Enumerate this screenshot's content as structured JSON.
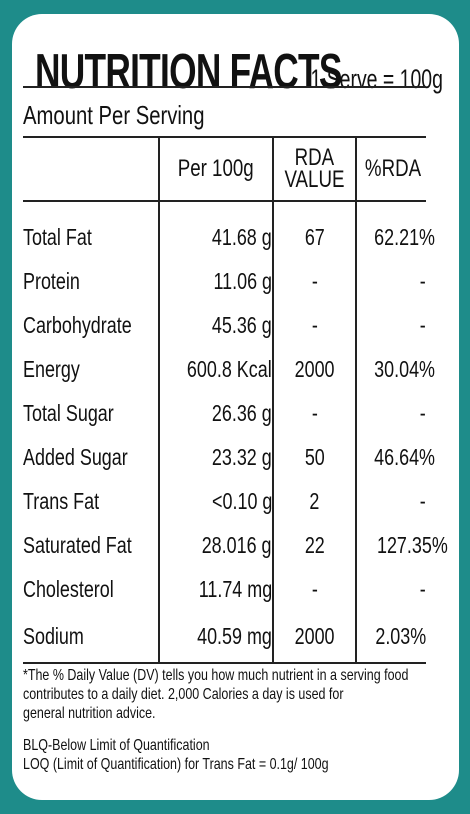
{
  "panel": {
    "title": "NUTRITION FACTS",
    "serve": "1 Serve = 100g",
    "amount_label": "Amount Per Serving"
  },
  "table": {
    "headers": {
      "nutrient": "",
      "per100": "Per 100g",
      "rda_line1": "RDA",
      "rda_line2": "VALUE",
      "pct": "%RDA"
    },
    "rows": [
      {
        "name": "Total Fat",
        "per100": "41.68 g",
        "rda": "67",
        "pct": "62.21%"
      },
      {
        "name": "Protein",
        "per100": "11.06 g",
        "rda": "-",
        "pct": "-"
      },
      {
        "name": "Carbohydrate",
        "per100": "45.36 g",
        "rda": "-",
        "pct": "-"
      },
      {
        "name": "Energy",
        "per100": "600.8 Kcal",
        "rda": "2000",
        "pct": "30.04%"
      },
      {
        "name": "Total Sugar",
        "per100": "26.36 g",
        "rda": "-",
        "pct": "-"
      },
      {
        "name": "Added Sugar",
        "per100": "23.32 g",
        "rda": "50",
        "pct": "46.64%"
      },
      {
        "name": "Trans Fat",
        "per100": "<0.10 g",
        "rda": "2",
        "pct": "-"
      },
      {
        "name": "Saturated Fat",
        "per100": "28.016 g",
        "rda": "22",
        "pct": "127.35%"
      },
      {
        "name": "Cholesterol",
        "per100": "11.74 mg",
        "rda": "-",
        "pct": "-"
      },
      {
        "name": "Sodium",
        "per100": "40.59 mg",
        "rda": "2000",
        "pct": "2.03%"
      }
    ]
  },
  "footnote": {
    "line1": "*The % Daily Value (DV) tells you how much nutrient in a serving food",
    "line2": "contributes to a daily diet. 2,000 Calories a day is used for",
    "line3": "general nutrition advice."
  },
  "legend": {
    "blq": "BLQ-Below Limit of Quantification",
    "loq": "LOQ (Limit of Quantification) for Trans Fat = 0.1g/ 100g"
  },
  "colors": {
    "background": "#1e8c8a",
    "card": "#ffffff",
    "text": "#111111"
  }
}
